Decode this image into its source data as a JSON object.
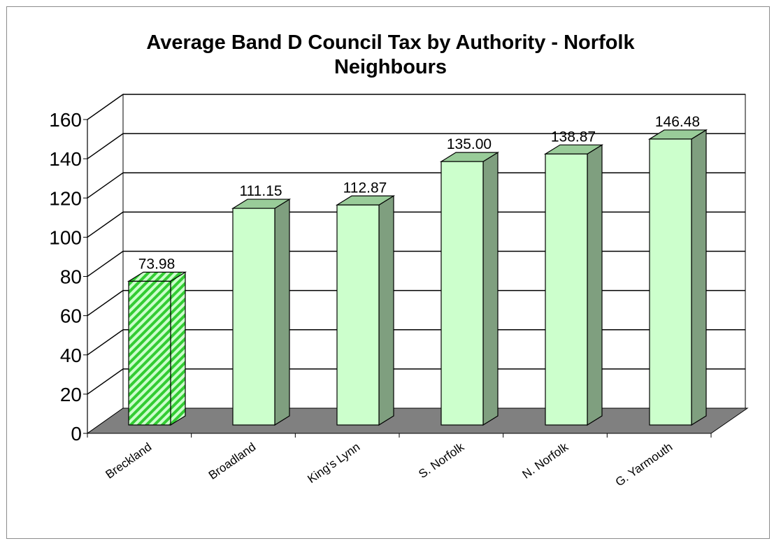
{
  "chart_data": {
    "type": "bar",
    "title_lines": [
      "Average Band D Council Tax by Authority - Norfolk",
      "Neighbours"
    ],
    "categories": [
      "Breckland",
      "Broadland",
      "King's Lynn",
      "S. Norfolk",
      "N. Norfolk",
      "G. Yarmouth"
    ],
    "values": [
      73.98,
      111.15,
      112.87,
      135.0,
      138.87,
      146.48
    ],
    "value_labels": [
      "73.98",
      "111.15",
      "112.87",
      "135.00",
      "138.87",
      "146.48"
    ],
    "y_ticks": [
      "0",
      "20",
      "40",
      "60",
      "80",
      "100",
      "120",
      "140",
      "160"
    ],
    "ylim": [
      0,
      160
    ],
    "grid": true,
    "legend": "none",
    "style": "3d-column",
    "highlight_category": "Breckland",
    "colors": {
      "bar_front": "#ccffcc",
      "bar_side": "#7f9f7f",
      "bar_top": "#99cc99",
      "highlight_stripe": "#33cc33",
      "highlight_bg": "#ccffcc",
      "floor": "#808080",
      "gridline": "#000000"
    }
  }
}
